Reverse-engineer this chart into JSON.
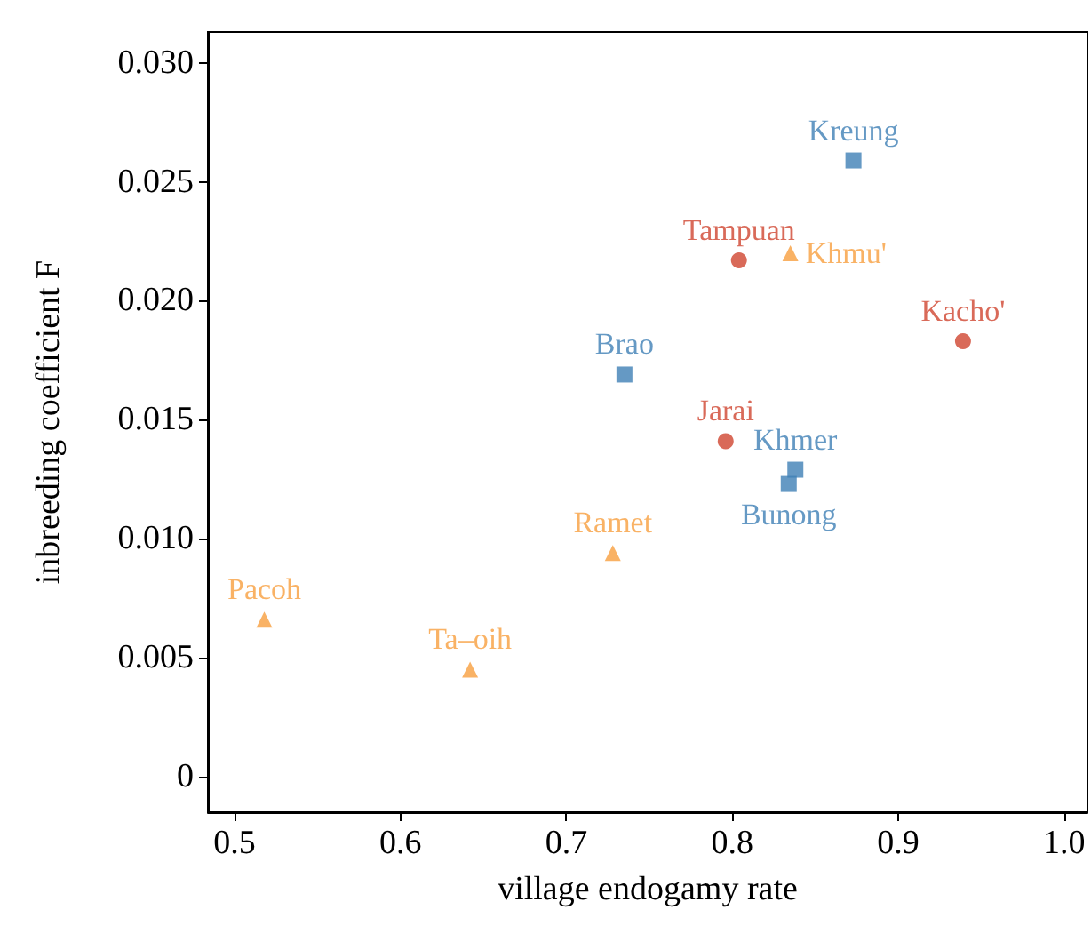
{
  "chart_data": {
    "type": "scatter",
    "xlabel": "village endogamy rate",
    "ylabel": "inbreeding coefficient F",
    "xlim": [
      0.484,
      1.014
    ],
    "ylim": [
      -0.0015,
      0.0313
    ],
    "xticks": [
      0.5,
      0.6,
      0.7,
      0.8,
      0.9,
      {
        "value": 1,
        "label": "1.0"
      }
    ],
    "yticks": [
      0,
      0.005,
      {
        "value": 0.01,
        "label": "0.010"
      },
      0.015,
      {
        "value": 0.02,
        "label": "0.020"
      },
      0.025,
      {
        "value": 0.03,
        "label": "0.030"
      }
    ],
    "series": [
      {
        "color": "#3f7fb5",
        "marker": "square",
        "x": [
          0.873,
          0.735,
          0.838,
          0.834
        ],
        "values": [
          0.0259,
          0.0169,
          0.0129,
          0.0123
        ]
      },
      {
        "color": "#d0452f",
        "marker": "circle",
        "x": [
          0.804,
          0.939,
          0.796
        ],
        "values": [
          0.0217,
          0.0183,
          0.0141
        ]
      },
      {
        "color": "#f79f3e",
        "marker": "triangle",
        "x": [
          0.835,
          0.728,
          0.518,
          0.642
        ],
        "values": [
          0.022,
          0.0094,
          0.0066,
          0.0045
        ]
      }
    ],
    "annotations": [
      {
        "text": "Kreung",
        "x": 0.873,
        "y": 0.0259
      },
      {
        "text": "Brao",
        "x": 0.735,
        "y": 0.0169
      },
      {
        "text": "Khmer",
        "x": 0.838,
        "y": 0.0129
      },
      {
        "text": "Bunong",
        "x": 0.834,
        "y": 0.0123
      },
      {
        "text": "Tampuan",
        "x": 0.804,
        "y": 0.0217
      },
      {
        "text": "Kacho'",
        "x": 0.939,
        "y": 0.0183
      },
      {
        "text": "Jarai",
        "x": 0.796,
        "y": 0.0141
      },
      {
        "text": "Khmu'",
        "x": 0.835,
        "y": 0.022
      },
      {
        "text": "Ramet",
        "x": 0.728,
        "y": 0.0094
      },
      {
        "text": "Pacoh",
        "x": 0.518,
        "y": 0.0066
      },
      {
        "text": "Ta–oih",
        "x": 0.642,
        "y": 0.0045
      }
    ]
  }
}
